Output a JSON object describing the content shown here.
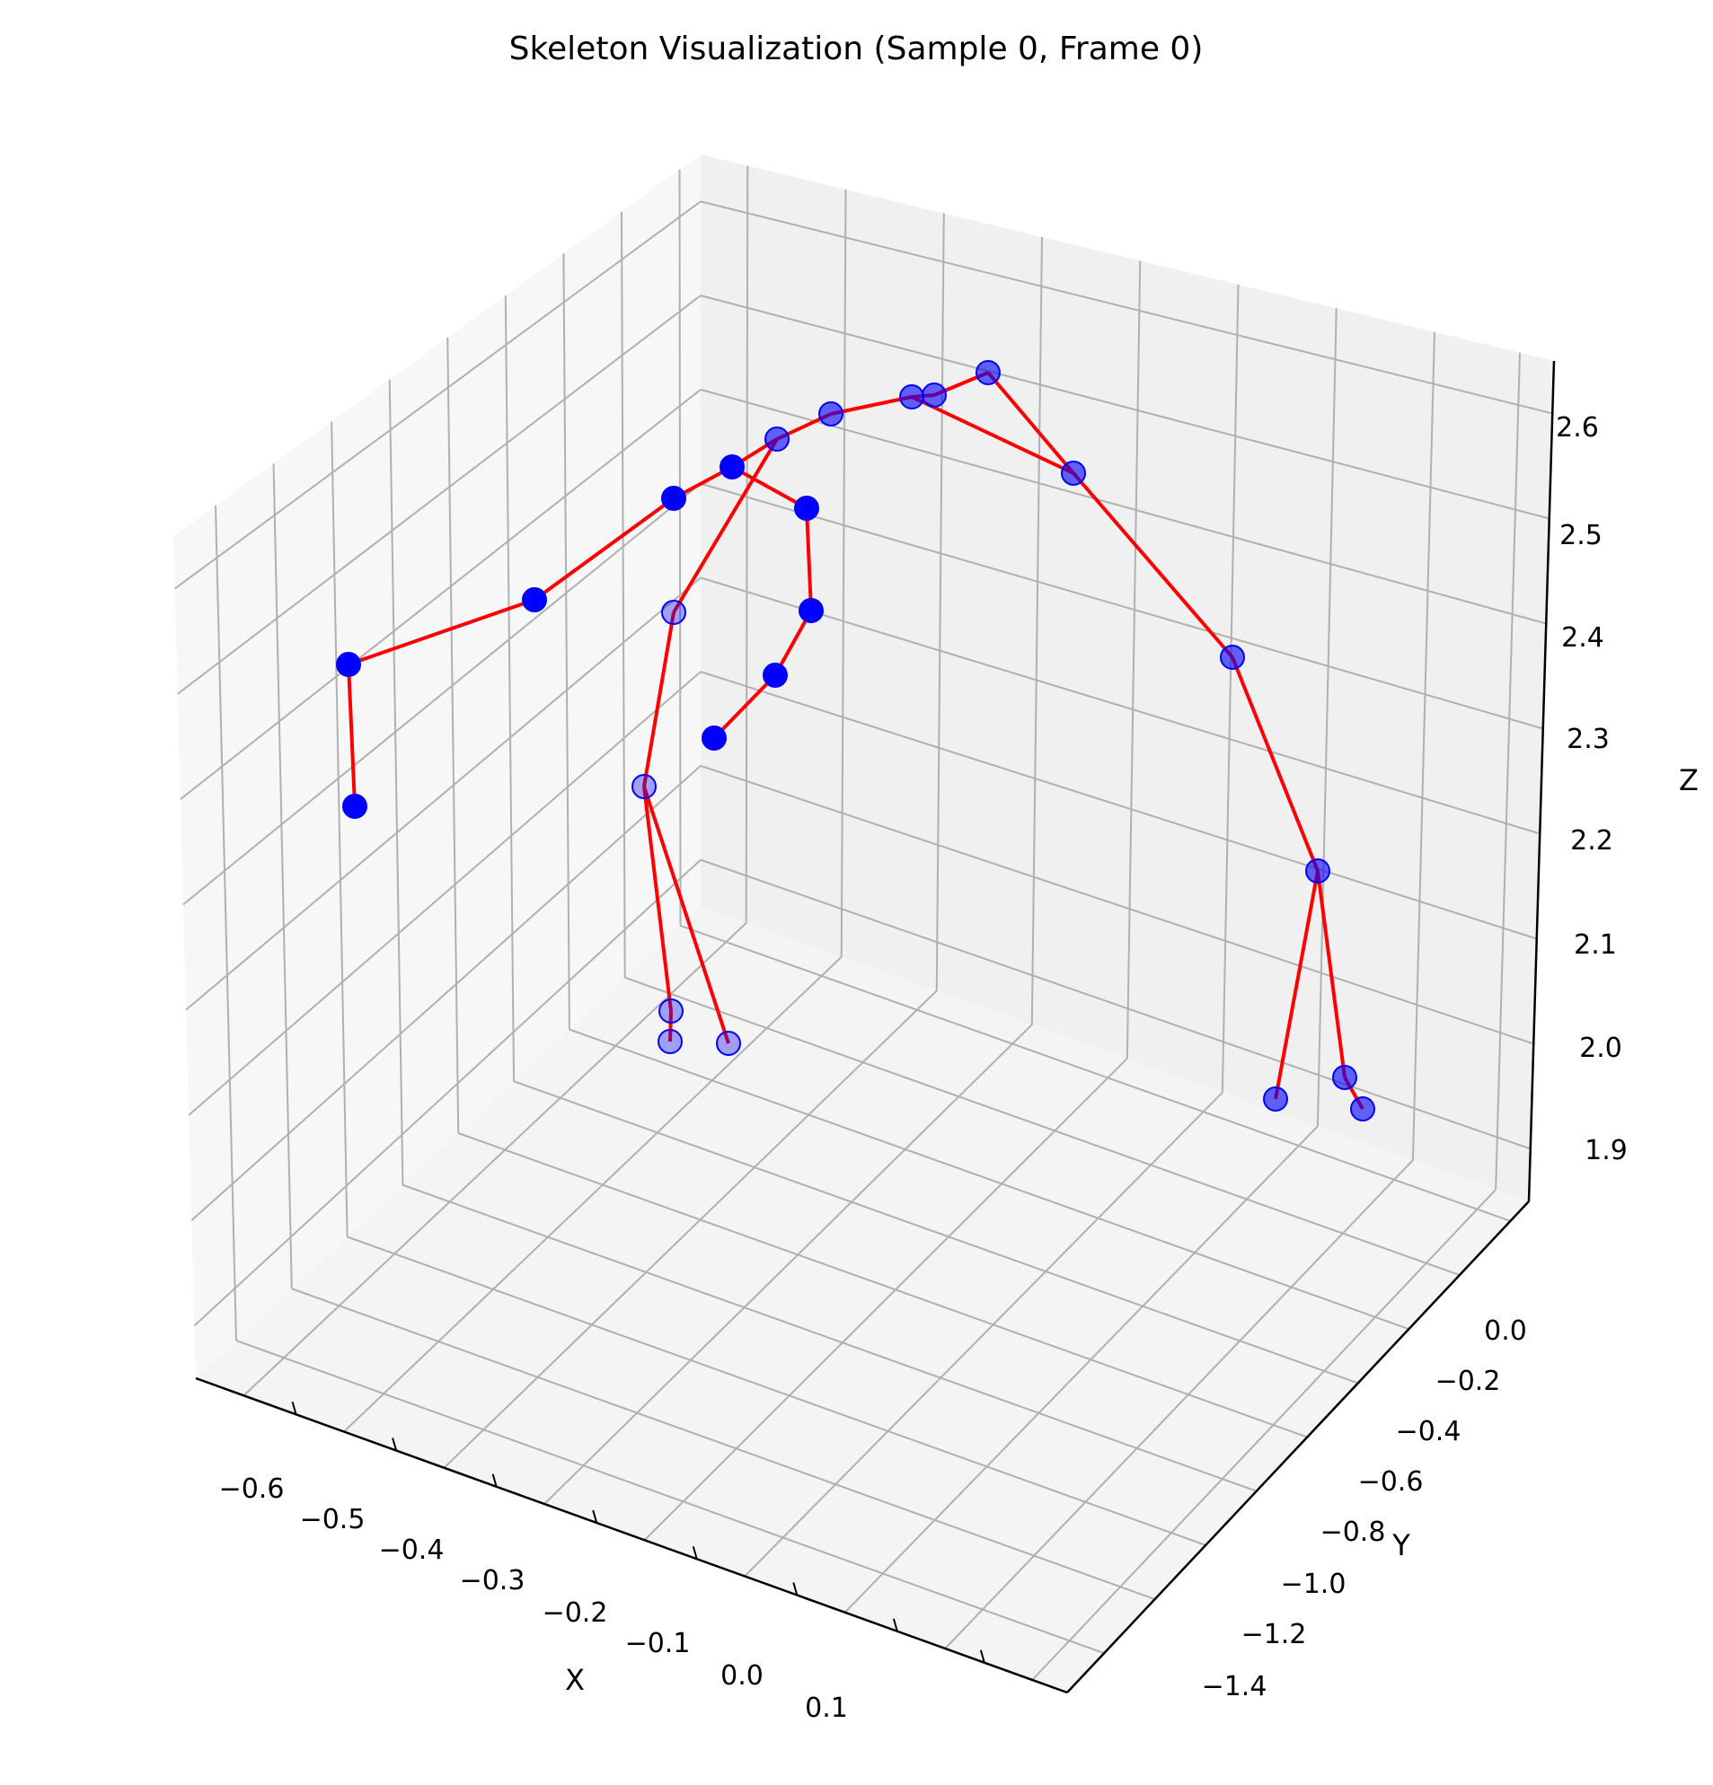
{
  "chart_data": {
    "type": "scatter",
    "subtype": "3d-skeleton",
    "title": "Skeleton Visualization (Sample 0, Frame 0)",
    "xlabel": "X",
    "ylabel": "Y",
    "zlabel": "Z",
    "x_ticks": [
      "−0.6",
      "−0.5",
      "−0.4",
      "−0.3",
      "−0.2",
      "−0.1",
      "0.0",
      "0.1"
    ],
    "y_ticks": [
      "0.0",
      "−0.2",
      "−0.4",
      "−0.6",
      "−0.8",
      "−1.0",
      "−1.2",
      "−1.4"
    ],
    "z_ticks": [
      "1.9",
      "2.0",
      "2.1",
      "2.2",
      "2.3",
      "2.4",
      "2.5",
      "2.6"
    ],
    "xlim": [
      -0.65,
      0.15
    ],
    "ylim": [
      -1.45,
      0.1
    ],
    "zlim": [
      1.85,
      2.65
    ],
    "grid": true,
    "joint_color": "#0000ff",
    "bone_color": "#ff0000",
    "pane_color": "#f2f2f2",
    "grid_color": "#b0b0b0"
  }
}
